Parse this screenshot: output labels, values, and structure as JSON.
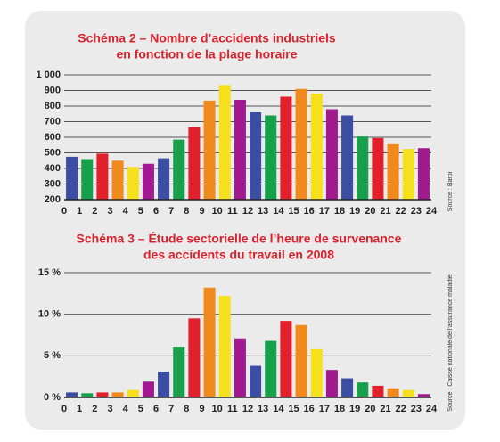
{
  "chart_data": [
    {
      "type": "histogram",
      "title": [
        "Schéma 2 – Nombre d’accidents industriels",
        "en fonction de la plage horaire"
      ],
      "source": "Source : Barpi",
      "bins": [
        0,
        1,
        2,
        3,
        4,
        5,
        6,
        7,
        8,
        9,
        10,
        11,
        12,
        13,
        14,
        15,
        16,
        17,
        18,
        19,
        20,
        21,
        22,
        23,
        24
      ],
      "values": [
        475,
        460,
        495,
        450,
        410,
        430,
        465,
        585,
        665,
        835,
        935,
        840,
        760,
        740,
        860,
        910,
        880,
        780,
        740,
        605,
        595,
        555,
        525,
        530
      ],
      "colors": [
        "#3b4ea3",
        "#17a04b",
        "#e2202c",
        "#f08a1d",
        "#f6e01c",
        "#a0198e",
        "#3b4ea3",
        "#17a04b",
        "#e2202c",
        "#f08a1d",
        "#f6e01c",
        "#a0198e",
        "#3b4ea3",
        "#17a04b",
        "#e2202c",
        "#f08a1d",
        "#f6e01c",
        "#a0198e",
        "#3b4ea3",
        "#17a04b",
        "#e2202c",
        "#f08a1d",
        "#f6e01c",
        "#a0198e"
      ],
      "xlim": [
        0,
        24
      ],
      "xticks": [
        0,
        1,
        2,
        3,
        4,
        5,
        6,
        7,
        8,
        9,
        10,
        11,
        12,
        13,
        14,
        15,
        16,
        17,
        18,
        19,
        20,
        21,
        22,
        23,
        24
      ],
      "ylim": [
        200,
        1000
      ],
      "yticks": [
        200,
        300,
        400,
        500,
        600,
        700,
        800,
        900,
        {
          "value": 1000,
          "label": "1 000"
        }
      ],
      "grid": true
    },
    {
      "type": "histogram",
      "title": [
        "Schéma 3 – Étude sectorielle de l’heure de survenance",
        "des accidents du travail en 2008"
      ],
      "source": "Source : Caisse nationale de l’assurance maladie",
      "bins": [
        0,
        1,
        2,
        3,
        4,
        5,
        6,
        7,
        8,
        9,
        10,
        11,
        12,
        13,
        14,
        15,
        16,
        17,
        18,
        19,
        20,
        21,
        22,
        23,
        24
      ],
      "values": [
        0.6,
        0.5,
        0.6,
        0.6,
        0.9,
        1.9,
        3.1,
        6.1,
        9.5,
        13.2,
        12.2,
        7.1,
        3.8,
        6.8,
        9.2,
        8.7,
        5.8,
        3.3,
        2.3,
        1.8,
        1.4,
        1.1,
        0.9,
        0.4
      ],
      "colors": [
        "#3b4ea3",
        "#17a04b",
        "#e2202c",
        "#f08a1d",
        "#f6e01c",
        "#a0198e",
        "#3b4ea3",
        "#17a04b",
        "#e2202c",
        "#f08a1d",
        "#f6e01c",
        "#a0198e",
        "#3b4ea3",
        "#17a04b",
        "#e2202c",
        "#f08a1d",
        "#f6e01c",
        "#a0198e",
        "#3b4ea3",
        "#17a04b",
        "#e2202c",
        "#f08a1d",
        "#f6e01c",
        "#a0198e"
      ],
      "xlim": [
        0,
        24
      ],
      "xticks": [
        0,
        1,
        2,
        3,
        4,
        5,
        6,
        7,
        8,
        9,
        10,
        11,
        12,
        13,
        14,
        15,
        16,
        17,
        18,
        19,
        20,
        21,
        22,
        23,
        24
      ],
      "ylim": [
        0,
        15
      ],
      "yticks": [
        {
          "value": 0,
          "label": "0 %"
        },
        {
          "value": 5,
          "label": "5 %"
        },
        {
          "value": 10,
          "label": "10 %"
        },
        {
          "value": 15,
          "label": "15 %"
        }
      ],
      "grid": true
    }
  ]
}
